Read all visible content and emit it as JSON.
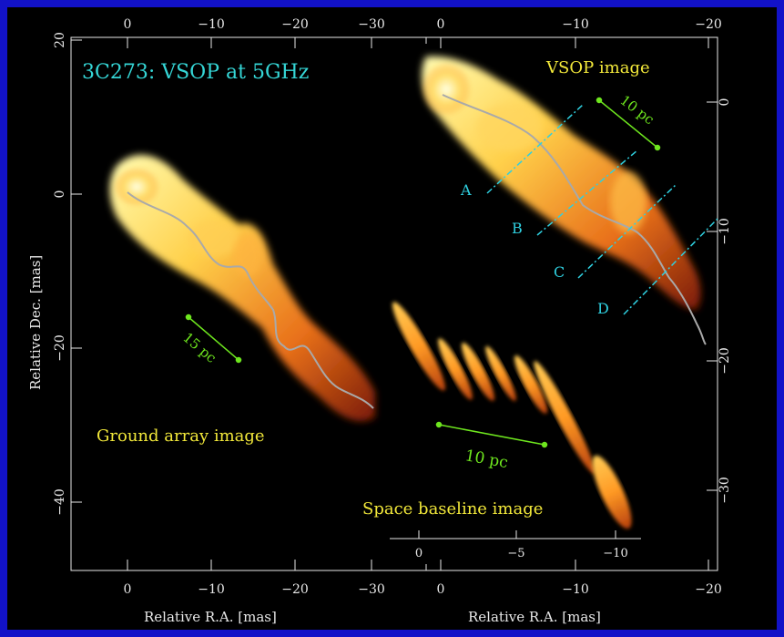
{
  "title": "3C273: VSOP at 5GHz",
  "panel_titles": {
    "vsop": "VSOP image",
    "ground": "Ground array image",
    "space": "Space baseline image"
  },
  "scale_bars": {
    "vsop": "10 pc",
    "ground": "15 pc",
    "space": "10 pc"
  },
  "cut_labels": [
    "A",
    "B",
    "C",
    "D"
  ],
  "axes": {
    "left_xlabel": "Relative R.A. [mas]",
    "right_xlabel": "Relative R.A. [mas]",
    "ylabel": "Relative Dec. [mas]",
    "left_bottom_ticks": [
      "0",
      "−10",
      "−20",
      "−30"
    ],
    "left_top_ticks": [
      "0",
      "−10",
      "−20",
      "−30"
    ],
    "right_top_ticks": [
      "0",
      "−10",
      "−20"
    ],
    "right_bottom_ticks": [
      "0",
      "−10",
      "−20"
    ],
    "left_y_ticks": [
      "20",
      "0",
      "−20",
      "−40"
    ],
    "right_y_ticks": [
      "0",
      "−10",
      "−20",
      "−30"
    ],
    "inset_ticks": [
      "0",
      "−5",
      "−10"
    ]
  },
  "colors": {
    "border": "#1212c8",
    "background": "#000000",
    "title": "#35d6d6",
    "label_yellow": "#f2e83a",
    "scale_green": "#6ee61e",
    "cut_cyan": "#2fd0e0",
    "ridge": "#a9a9a9",
    "axis": "#e8e8e8"
  }
}
